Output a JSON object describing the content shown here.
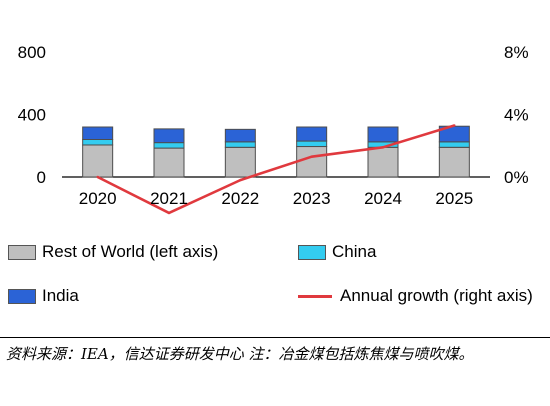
{
  "chart_data": {
    "type": "bar",
    "categories": [
      "2020",
      "2021",
      "2022",
      "2023",
      "2024",
      "2025"
    ],
    "series": [
      {
        "name": "Rest of World (left axis)",
        "type": "stacked-bar",
        "axis": "left",
        "values": [
          205,
          185,
          190,
          195,
          190,
          190
        ]
      },
      {
        "name": "China",
        "type": "stacked-bar",
        "axis": "left",
        "values": [
          35,
          35,
          35,
          35,
          35,
          35
        ]
      },
      {
        "name": "India",
        "type": "stacked-bar",
        "axis": "left",
        "values": [
          80,
          88,
          80,
          90,
          95,
          100
        ]
      },
      {
        "name": "Annual growth (right axis)",
        "type": "line",
        "axis": "right",
        "values": [
          0.0,
          -2.3,
          -0.2,
          1.3,
          1.9,
          3.3
        ]
      }
    ],
    "left_axis": {
      "ylim": [
        0,
        800
      ],
      "ticks": [
        "0",
        "400",
        "800"
      ]
    },
    "right_axis": {
      "ylim": [
        0,
        8
      ],
      "ticks": [
        "0%",
        "4%",
        "8%"
      ]
    },
    "grid": false,
    "legend_placement": "bottom",
    "colors": {
      "Rest of World (left axis)": "#bfbfbf",
      "China": "#33ccf0",
      "India": "#2b63d6",
      "Annual growth (right axis)": "#e0393e"
    }
  },
  "legend": {
    "row": "Rest of World (left axis)",
    "china": "China",
    "india": "India",
    "growth": "Annual growth (right axis)"
  },
  "source": "资料来源：IEA，信达证券研发中心   注：冶金煤包括炼焦煤与喷吹煤。"
}
